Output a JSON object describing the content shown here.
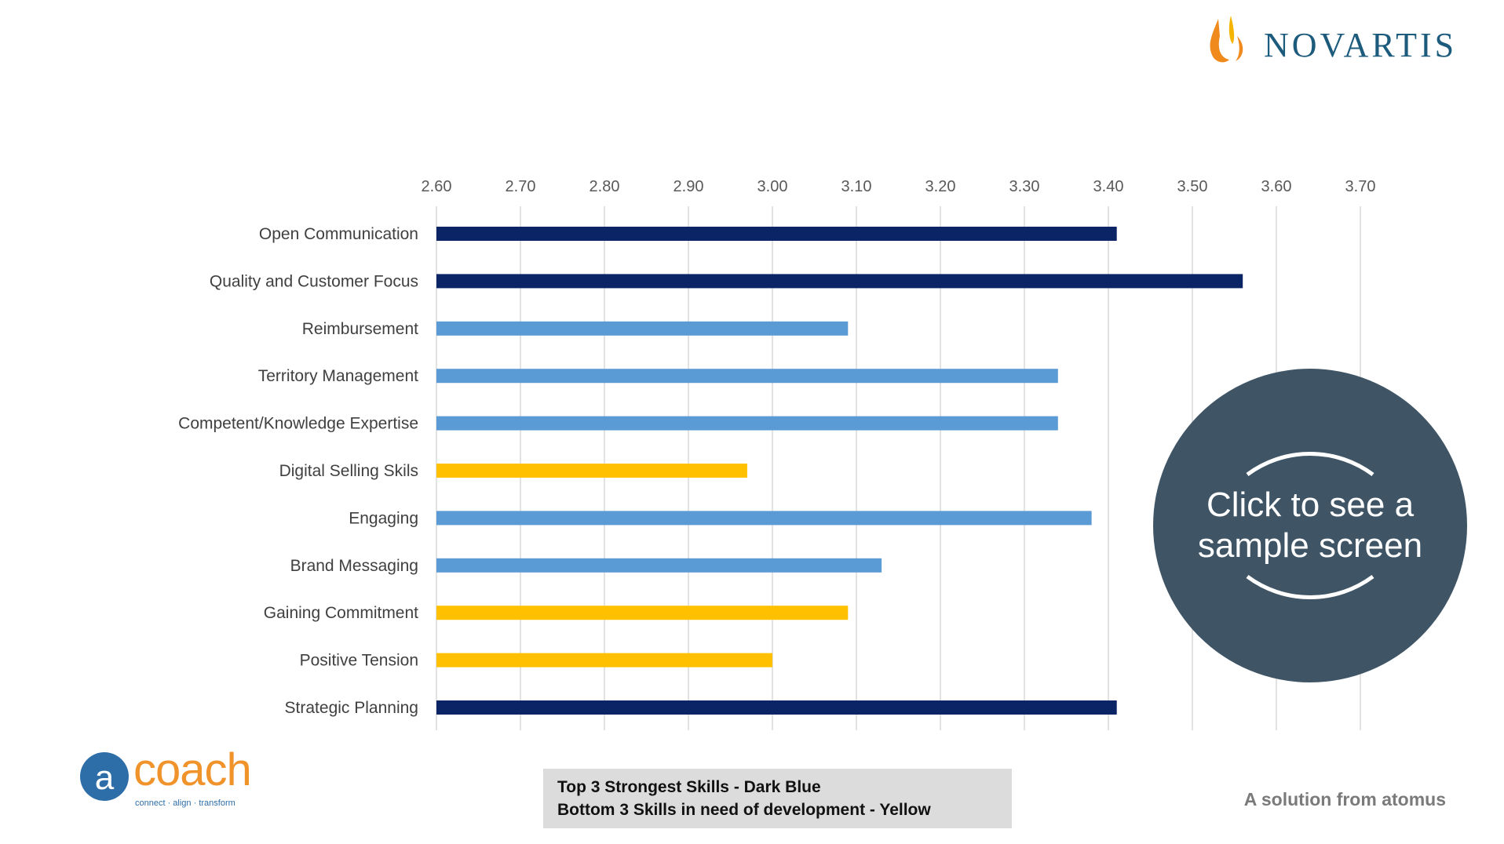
{
  "chart_data": {
    "type": "bar",
    "orientation": "horizontal",
    "categories": [
      "Open Communication",
      "Quality and Customer Focus",
      "Reimbursement",
      "Territory Management",
      "Competent/Knowledge Expertise",
      "Digital Selling Skils",
      "Engaging",
      "Brand Messaging",
      "Gaining Commitment",
      "Positive Tension",
      "Strategic Planning"
    ],
    "values": [
      3.41,
      3.56,
      3.09,
      3.34,
      3.34,
      2.97,
      3.38,
      3.13,
      3.09,
      3.0,
      3.41
    ],
    "groups": [
      "top",
      "top",
      "normal",
      "normal",
      "normal",
      "bottom",
      "normal",
      "normal",
      "bottom",
      "bottom",
      "top"
    ],
    "colors": {
      "top": "#0a2466",
      "normal": "#5b9bd5",
      "bottom": "#ffc000",
      "grid": "#d9d9d9",
      "tick": "#595959"
    },
    "xlim": [
      2.6,
      3.7
    ],
    "ticks": [
      "2.60",
      "2.70",
      "2.80",
      "2.90",
      "3.00",
      "3.10",
      "3.20",
      "3.30",
      "3.40",
      "3.50",
      "3.60",
      "3.70"
    ],
    "axis_position": "top",
    "grid": true
  },
  "branding": {
    "novartis": "NOVARTIS",
    "acoach": "coach",
    "acoach_letter": "a",
    "acoach_tagline": "connect · align · transform"
  },
  "legend": {
    "line1": "Top 3 Strongest Skills - Dark Blue",
    "line2": "Bottom 3 Skills in need of development - Yellow"
  },
  "footer": {
    "solution": "A solution from atomus"
  },
  "cta": {
    "line1": "Click to see a",
    "line2": "sample screen",
    "color": "#3f5566"
  }
}
